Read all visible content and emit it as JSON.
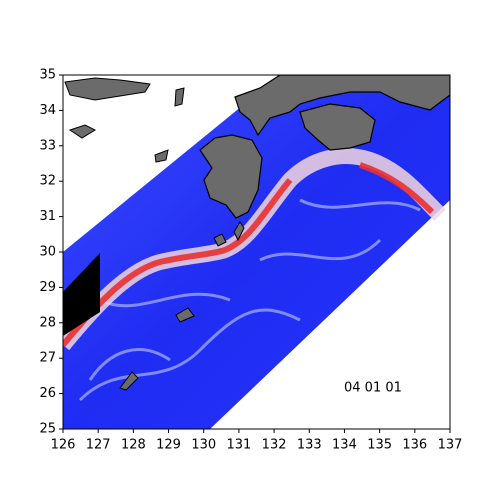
{
  "chart_data": {
    "type": "map",
    "xlim": [
      126,
      137
    ],
    "ylim": [
      25,
      35
    ],
    "xticks": [
      126,
      127,
      128,
      129,
      130,
      131,
      132,
      133,
      134,
      135,
      136,
      137
    ],
    "yticks": [
      25,
      26,
      27,
      28,
      29,
      30,
      31,
      32,
      33,
      34,
      35
    ],
    "annotation": "04 01 01"
  }
}
